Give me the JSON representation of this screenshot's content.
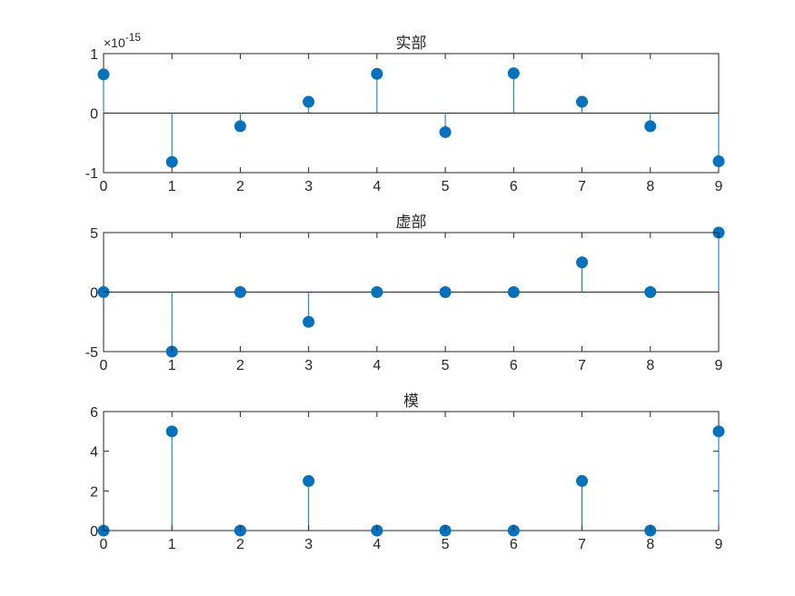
{
  "figure": {
    "background": "#ffffff"
  },
  "chart_data": [
    {
      "type": "stem",
      "title": "实部",
      "x": [
        0,
        1,
        2,
        3,
        4,
        5,
        6,
        7,
        8,
        9
      ],
      "y": [
        6.5e-16,
        -8.2e-16,
        -2.2e-16,
        1.9e-16,
        6.6e-16,
        -3.2e-16,
        6.7e-16,
        1.9e-16,
        -2.2e-16,
        -8.1e-16
      ],
      "xlim": [
        0,
        9
      ],
      "ylim": [
        -1e-15,
        1e-15
      ],
      "xticks": [
        "0",
        "1",
        "2",
        "3",
        "4",
        "5",
        "6",
        "7",
        "8",
        "9"
      ],
      "yticks": [
        "-1",
        "0",
        "1"
      ],
      "ytick_values": [
        -1e-15,
        0,
        1e-15
      ],
      "exponent_label": {
        "base": "×10",
        "power": "-15"
      },
      "color": "#0072BD",
      "grid": false
    },
    {
      "type": "stem",
      "title": "虚部",
      "x": [
        0,
        1,
        2,
        3,
        4,
        5,
        6,
        7,
        8,
        9
      ],
      "y": [
        0,
        -5,
        0,
        -2.5,
        0,
        0,
        0,
        2.5,
        0,
        5
      ],
      "xlim": [
        0,
        9
      ],
      "ylim": [
        -5,
        5
      ],
      "xticks": [
        "0",
        "1",
        "2",
        "3",
        "4",
        "5",
        "6",
        "7",
        "8",
        "9"
      ],
      "yticks": [
        "-5",
        "0",
        "5"
      ],
      "ytick_values": [
        -5,
        0,
        5
      ],
      "color": "#0072BD",
      "grid": false
    },
    {
      "type": "stem",
      "title": "模",
      "x": [
        0,
        1,
        2,
        3,
        4,
        5,
        6,
        7,
        8,
        9
      ],
      "y": [
        0,
        5,
        0,
        2.5,
        0,
        0,
        0,
        2.5,
        0,
        5
      ],
      "xlim": [
        0,
        9
      ],
      "ylim": [
        0,
        6
      ],
      "xticks": [
        "0",
        "1",
        "2",
        "3",
        "4",
        "5",
        "6",
        "7",
        "8",
        "9"
      ],
      "yticks": [
        "0",
        "2",
        "4",
        "6"
      ],
      "ytick_values": [
        0,
        2,
        4,
        6
      ],
      "color": "#0072BD",
      "grid": false
    }
  ]
}
